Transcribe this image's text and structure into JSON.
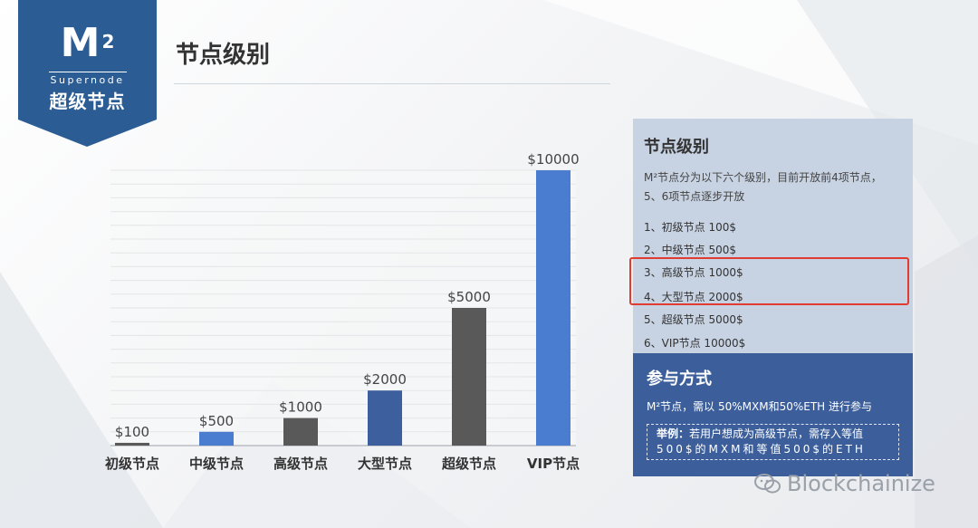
{
  "logo": {
    "mark": "M",
    "sup": "2",
    "en": "Supernode",
    "cn": "超级节点"
  },
  "page": {
    "title": "节点级别"
  },
  "chart_data": {
    "type": "bar",
    "categories": [
      "初级节点",
      "中级节点",
      "高级节点",
      "大型节点",
      "超级节点",
      "VIP节点"
    ],
    "values": [
      100,
      500,
      1000,
      2000,
      5000,
      10000
    ],
    "value_labels": [
      "$100",
      "$500",
      "$1000",
      "$2000",
      "$5000",
      "$10000"
    ],
    "colors": [
      "#595959",
      "#4a7cd0",
      "#595959",
      "#3d5f9e",
      "#595959",
      "#4a7cd0"
    ],
    "ylim": [
      0,
      10000
    ],
    "grid": true,
    "title": "",
    "xlabel": "",
    "ylabel": ""
  },
  "panel": {
    "heading": "节点级别",
    "desc": "M²节点分为以下六个级别，目前开放前4项节点，5、6项节点逐步开放",
    "levels": [
      "1、初级节点 100$",
      "2、中级节点 500$",
      "3、高级节点 1000$",
      "4、大型节点 2000$",
      "5、超级节点 5000$",
      "6、VIP节点 10000$"
    ],
    "participation_heading": "参与方式",
    "participation_text": "M²节点，需以 50%MXM和50%ETH 进行参与",
    "example_label": "举例：",
    "example_text": "若用户想成为高级节点，需存入等值",
    "example_line2": "500$的MXM和等值500$的ETH"
  },
  "watermark": {
    "text": "Blockchainize",
    "icon": "wechat-icon"
  }
}
